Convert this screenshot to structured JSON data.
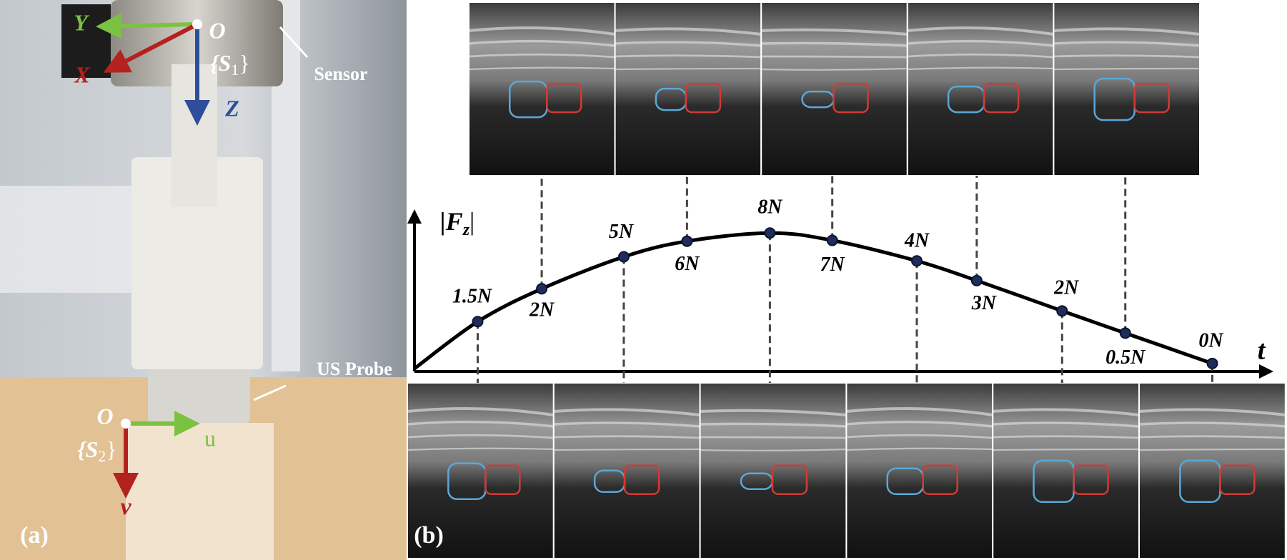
{
  "panel_a": {
    "tag": "(a)",
    "frame_1": {
      "origin": "O",
      "x_axis": "X",
      "y_axis": "Y",
      "z_axis": "Z",
      "name": [
        "{S",
        "1",
        "}"
      ]
    },
    "frame_2": {
      "origin": "O",
      "u_axis": "u",
      "v_axis": "v",
      "name": [
        "{S",
        "2",
        "}"
      ]
    },
    "sensor_label": "Sensor",
    "probe_label": "US Probe"
  },
  "panel_b": {
    "tag": "(b)",
    "y_label": [
      "|F",
      "z",
      "|"
    ],
    "x_label": "t",
    "points": [
      "1.5N",
      "2N",
      "5N",
      "6N",
      "8N",
      "7N",
      "4N",
      "3N",
      "2N",
      "0.5N",
      "0N"
    ]
  }
}
